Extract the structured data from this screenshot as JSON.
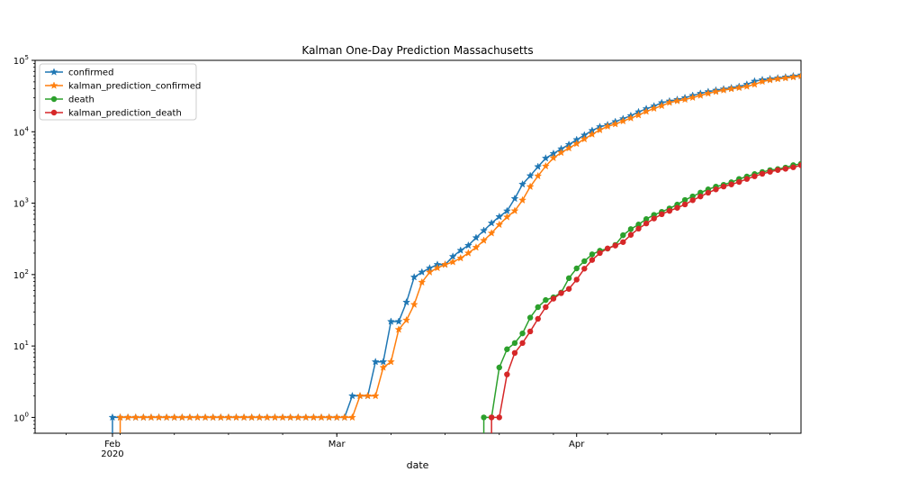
{
  "chart_data": {
    "type": "line",
    "title": "Kalman One-Day Prediction Massachusetts",
    "xlabel": "date",
    "ylabel": "",
    "yscale": "log",
    "ylim": [
      0.6,
      100000
    ],
    "xlim": [
      "2020-01-22",
      "2020-04-30"
    ],
    "grid": false,
    "legend_position": "top-left",
    "x_tick_labels": [
      {
        "date": "2020-02-01",
        "label": "Feb",
        "sublabel": "2020"
      },
      {
        "date": "2020-03-01",
        "label": "Mar",
        "sublabel": ""
      },
      {
        "date": "2020-04-01",
        "label": "Apr",
        "sublabel": ""
      }
    ],
    "y_tick_labels": [
      {
        "value": 1,
        "label": "10",
        "exp": "0"
      },
      {
        "value": 10,
        "label": "10",
        "exp": "1"
      },
      {
        "value": 100,
        "label": "10",
        "exp": "2"
      },
      {
        "value": 1000,
        "label": "10",
        "exp": "3"
      },
      {
        "value": 10000,
        "label": "10",
        "exp": "4"
      },
      {
        "value": 100000,
        "label": "10",
        "exp": "5"
      }
    ],
    "series": [
      {
        "name": "confirmed",
        "color": "#1f77b4",
        "marker": "star",
        "x": [
          "2020-02-01",
          "2020-02-02",
          "2020-02-03",
          "2020-02-04",
          "2020-02-05",
          "2020-02-06",
          "2020-02-07",
          "2020-02-08",
          "2020-02-09",
          "2020-02-10",
          "2020-02-11",
          "2020-02-12",
          "2020-02-13",
          "2020-02-14",
          "2020-02-15",
          "2020-02-16",
          "2020-02-17",
          "2020-02-18",
          "2020-02-19",
          "2020-02-20",
          "2020-02-21",
          "2020-02-22",
          "2020-02-23",
          "2020-02-24",
          "2020-02-25",
          "2020-02-26",
          "2020-02-27",
          "2020-02-28",
          "2020-02-29",
          "2020-03-01",
          "2020-03-02",
          "2020-03-03",
          "2020-03-04",
          "2020-03-05",
          "2020-03-06",
          "2020-03-07",
          "2020-03-08",
          "2020-03-09",
          "2020-03-10",
          "2020-03-11",
          "2020-03-12",
          "2020-03-13",
          "2020-03-14",
          "2020-03-15",
          "2020-03-16",
          "2020-03-17",
          "2020-03-18",
          "2020-03-19",
          "2020-03-20",
          "2020-03-21",
          "2020-03-22",
          "2020-03-23",
          "2020-03-24",
          "2020-03-25",
          "2020-03-26",
          "2020-03-27",
          "2020-03-28",
          "2020-03-29",
          "2020-03-30",
          "2020-03-31",
          "2020-04-01",
          "2020-04-02",
          "2020-04-03",
          "2020-04-04",
          "2020-04-05",
          "2020-04-06",
          "2020-04-07",
          "2020-04-08",
          "2020-04-09",
          "2020-04-10",
          "2020-04-11",
          "2020-04-12",
          "2020-04-13",
          "2020-04-14",
          "2020-04-15",
          "2020-04-16",
          "2020-04-17",
          "2020-04-18",
          "2020-04-19",
          "2020-04-20",
          "2020-04-21",
          "2020-04-22",
          "2020-04-23",
          "2020-04-24",
          "2020-04-25",
          "2020-04-26",
          "2020-04-27",
          "2020-04-28",
          "2020-04-29",
          "2020-04-30"
        ],
        "values": [
          1,
          1,
          1,
          1,
          1,
          1,
          1,
          1,
          1,
          1,
          1,
          1,
          1,
          1,
          1,
          1,
          1,
          1,
          1,
          1,
          1,
          1,
          1,
          1,
          1,
          1,
          1,
          1,
          1,
          1,
          1,
          2,
          2,
          2,
          6,
          6,
          22,
          22,
          41,
          92,
          108,
          123,
          138,
          138,
          179,
          218,
          256,
          328,
          413,
          525,
          646,
          777,
          1159,
          1838,
          2417,
          3240,
          4257,
          4955,
          5752,
          6620,
          7738,
          8966,
          10402,
          11736,
          12500,
          13837,
          15202,
          16790,
          18941,
          20974,
          22860,
          25475,
          26867,
          28163,
          29918,
          32181,
          34402,
          36372,
          38077,
          39643,
          41199,
          42944,
          46023,
          50969,
          53348,
          54938,
          56462,
          58302,
          60265,
          62205
        ]
      },
      {
        "name": "kalman_prediction_confirmed",
        "color": "#ff7f0e",
        "marker": "star",
        "x": [
          "2020-02-02",
          "2020-02-03",
          "2020-02-04",
          "2020-02-05",
          "2020-02-06",
          "2020-02-07",
          "2020-02-08",
          "2020-02-09",
          "2020-02-10",
          "2020-02-11",
          "2020-02-12",
          "2020-02-13",
          "2020-02-14",
          "2020-02-15",
          "2020-02-16",
          "2020-02-17",
          "2020-02-18",
          "2020-02-19",
          "2020-02-20",
          "2020-02-21",
          "2020-02-22",
          "2020-02-23",
          "2020-02-24",
          "2020-02-25",
          "2020-02-26",
          "2020-02-27",
          "2020-02-28",
          "2020-02-29",
          "2020-03-01",
          "2020-03-02",
          "2020-03-03",
          "2020-03-04",
          "2020-03-05",
          "2020-03-06",
          "2020-03-07",
          "2020-03-08",
          "2020-03-09",
          "2020-03-10",
          "2020-03-11",
          "2020-03-12",
          "2020-03-13",
          "2020-03-14",
          "2020-03-15",
          "2020-03-16",
          "2020-03-17",
          "2020-03-18",
          "2020-03-19",
          "2020-03-20",
          "2020-03-21",
          "2020-03-22",
          "2020-03-23",
          "2020-03-24",
          "2020-03-25",
          "2020-03-26",
          "2020-03-27",
          "2020-03-28",
          "2020-03-29",
          "2020-03-30",
          "2020-03-31",
          "2020-04-01",
          "2020-04-02",
          "2020-04-03",
          "2020-04-04",
          "2020-04-05",
          "2020-04-06",
          "2020-04-07",
          "2020-04-08",
          "2020-04-09",
          "2020-04-10",
          "2020-04-11",
          "2020-04-12",
          "2020-04-13",
          "2020-04-14",
          "2020-04-15",
          "2020-04-16",
          "2020-04-17",
          "2020-04-18",
          "2020-04-19",
          "2020-04-20",
          "2020-04-21",
          "2020-04-22",
          "2020-04-23",
          "2020-04-24",
          "2020-04-25",
          "2020-04-26",
          "2020-04-27",
          "2020-04-28",
          "2020-04-29",
          "2020-04-30"
        ],
        "values": [
          1,
          1,
          1,
          1,
          1,
          1,
          1,
          1,
          1,
          1,
          1,
          1,
          1,
          1,
          1,
          1,
          1,
          1,
          1,
          1,
          1,
          1,
          1,
          1,
          1,
          1,
          1,
          1,
          1,
          1,
          1,
          2,
          2,
          2,
          5,
          6,
          17,
          23,
          38,
          78,
          108,
          124,
          138,
          150,
          170,
          200,
          240,
          300,
          380,
          500,
          640,
          780,
          1100,
          1700,
          2400,
          3300,
          4300,
          5100,
          5900,
          6800,
          7900,
          9200,
          10600,
          11900,
          12800,
          14100,
          15500,
          17100,
          19200,
          21200,
          23100,
          25600,
          27000,
          28300,
          30100,
          32200,
          34400,
          36400,
          38200,
          39800,
          41300,
          43100,
          46000,
          50500,
          53000,
          54800,
          56400,
          58200,
          60200
        ]
      },
      {
        "name": "death",
        "color": "#2ca02c",
        "marker": "circle",
        "x": [
          "2020-03-20",
          "2020-03-21",
          "2020-03-22",
          "2020-03-23",
          "2020-03-24",
          "2020-03-25",
          "2020-03-26",
          "2020-03-27",
          "2020-03-28",
          "2020-03-29",
          "2020-03-30",
          "2020-03-31",
          "2020-04-01",
          "2020-04-02",
          "2020-04-03",
          "2020-04-04",
          "2020-04-05",
          "2020-04-06",
          "2020-04-07",
          "2020-04-08",
          "2020-04-09",
          "2020-04-10",
          "2020-04-11",
          "2020-04-12",
          "2020-04-13",
          "2020-04-14",
          "2020-04-15",
          "2020-04-16",
          "2020-04-17",
          "2020-04-18",
          "2020-04-19",
          "2020-04-20",
          "2020-04-21",
          "2020-04-22",
          "2020-04-23",
          "2020-04-24",
          "2020-04-25",
          "2020-04-26",
          "2020-04-27",
          "2020-04-28",
          "2020-04-29",
          "2020-04-30"
        ],
        "values": [
          1,
          1,
          5,
          9,
          11,
          15,
          25,
          35,
          44,
          48,
          56,
          89,
          122,
          154,
          192,
          216,
          231,
          260,
          356,
          433,
          503,
          599,
          686,
          756,
          844,
          957,
          1108,
          1245,
          1404,
          1560,
          1706,
          1809,
          1961,
          2182,
          2360,
          2556,
          2730,
          2899,
          3003,
          3153,
          3405,
          3562
        ]
      },
      {
        "name": "kalman_prediction_death",
        "color": "#d62728",
        "marker": "circle",
        "x": [
          "2020-03-21",
          "2020-03-22",
          "2020-03-23",
          "2020-03-24",
          "2020-03-25",
          "2020-03-26",
          "2020-03-27",
          "2020-03-28",
          "2020-03-29",
          "2020-03-30",
          "2020-03-31",
          "2020-04-01",
          "2020-04-02",
          "2020-04-03",
          "2020-04-04",
          "2020-04-05",
          "2020-04-06",
          "2020-04-07",
          "2020-04-08",
          "2020-04-09",
          "2020-04-10",
          "2020-04-11",
          "2020-04-12",
          "2020-04-13",
          "2020-04-14",
          "2020-04-15",
          "2020-04-16",
          "2020-04-17",
          "2020-04-18",
          "2020-04-19",
          "2020-04-20",
          "2020-04-21",
          "2020-04-22",
          "2020-04-23",
          "2020-04-24",
          "2020-04-25",
          "2020-04-26",
          "2020-04-27",
          "2020-04-28",
          "2020-04-29",
          "2020-04-30"
        ],
        "values": [
          1,
          1,
          4,
          8,
          11,
          16,
          24,
          35,
          46,
          55,
          63,
          85,
          121,
          160,
          200,
          232,
          255,
          285,
          360,
          440,
          520,
          610,
          700,
          780,
          860,
          960,
          1100,
          1240,
          1400,
          1560,
          1710,
          1830,
          1980,
          2180,
          2380,
          2580,
          2750,
          2910,
          3030,
          3180,
          3400
        ]
      }
    ]
  }
}
